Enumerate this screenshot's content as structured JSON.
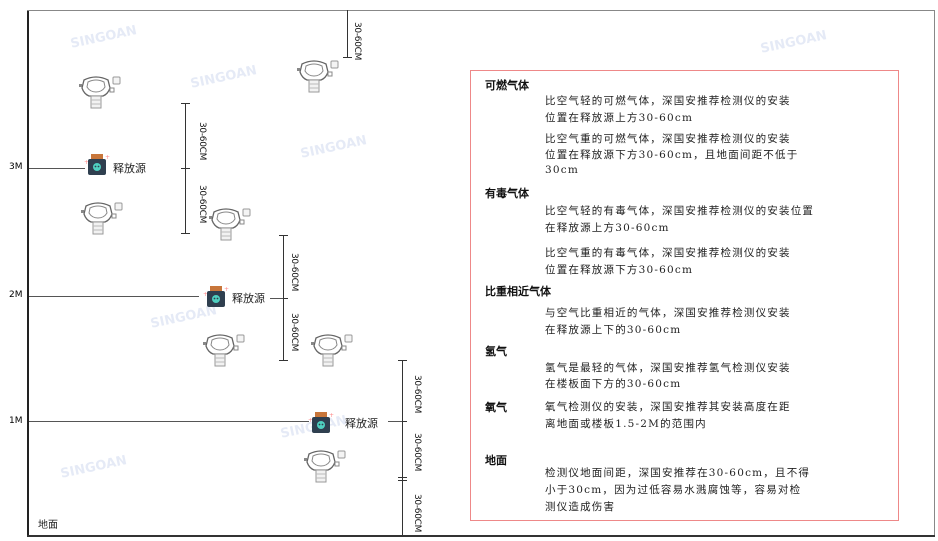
{
  "watermark": "SINGOAN 深国安",
  "levels": {
    "m3": "3M",
    "m2": "2M",
    "m1": "1M",
    "ground": "地面"
  },
  "source_label": "释放源",
  "dimension_label": "30-60CM",
  "icons": {
    "detector": "gas-detector-icon",
    "source": "release-source-icon"
  },
  "colors": {
    "box_border": "#ee8888",
    "source_lid": "#c8763a",
    "source_body": "#2f3f4f",
    "source_face": "#4fd0c0"
  },
  "notes": {
    "flammable": {
      "title": "可燃气体",
      "lines": [
        "比空气轻的可燃气体，深国安推荐检测仪的安装",
        "位置在释放源上方30-60cm",
        "比空气重的可燃气体，深国安推荐检测仪的安装",
        "位置在释放源下方30-60cm，且地面间距不低于",
        "30cm"
      ]
    },
    "toxic": {
      "title": "有毒气体",
      "lines": [
        "比空气轻的有毒气体，深国安推荐检测仪的安装位置",
        "在释放源上方30-60cm",
        "比空气重的有毒气体，深国安推荐检测仪的安装",
        "位置在释放源下方30-60cm"
      ]
    },
    "similar": {
      "title": "比重相近气体",
      "lines": [
        "与空气比重相近的气体，深国安推荐检测仪安装",
        "在释放源上下的30-60cm"
      ]
    },
    "hydrogen": {
      "title": "氢气",
      "lines": [
        "氢气是最轻的气体，深国安推荐氢气检测仪安装",
        "在楼板面下方的30-60cm"
      ]
    },
    "oxygen": {
      "title": "氧气",
      "lines": [
        "氧气检测仪的安装，深国安推荐其安装高度在距",
        "离地面或楼板1.5-2M的范围内"
      ]
    },
    "ground": {
      "title": "地面",
      "lines": [
        "检测仪地面间距，深国安推荐在30-60cm，且不得",
        "小于30cm，因为过低容易水溅腐蚀等，容易对检",
        "测仪造成伤害"
      ]
    }
  }
}
